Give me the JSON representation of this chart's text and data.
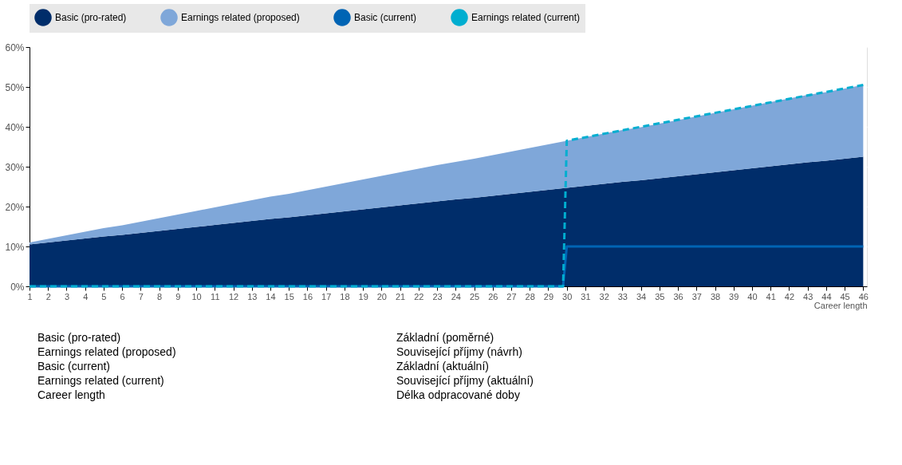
{
  "chart_data": {
    "type": "area",
    "stacked": true,
    "xlabel": "Career length",
    "x": [
      1,
      2,
      3,
      4,
      5,
      6,
      7,
      8,
      9,
      10,
      11,
      12,
      13,
      14,
      15,
      16,
      17,
      18,
      19,
      20,
      21,
      22,
      23,
      24,
      25,
      26,
      27,
      28,
      29,
      30,
      31,
      32,
      33,
      34,
      35,
      36,
      37,
      38,
      39,
      40,
      41,
      42,
      43,
      44,
      45,
      46
    ],
    "series": [
      {
        "name": "Basic (pro-rated)",
        "color": "#002d6a",
        "values": [
          10.5,
          11.0,
          11.5,
          12.0,
          12.5,
          12.9,
          13.4,
          13.9,
          14.4,
          14.9,
          15.4,
          15.9,
          16.4,
          16.9,
          17.3,
          17.8,
          18.3,
          18.8,
          19.3,
          19.8,
          20.3,
          20.8,
          21.3,
          21.8,
          22.2,
          22.7,
          23.2,
          23.7,
          24.2,
          24.7,
          25.2,
          25.7,
          26.2,
          26.6,
          27.1,
          27.6,
          28.1,
          28.6,
          29.1,
          29.6,
          30.1,
          30.6,
          31.1,
          31.5,
          32.0,
          32.5
        ]
      },
      {
        "name": "Earnings related (proposed)",
        "color": "#7fa7d9",
        "values": [
          0.5,
          0.9,
          1.3,
          1.7,
          2.1,
          2.4,
          2.8,
          3.2,
          3.6,
          4.0,
          4.4,
          4.8,
          5.2,
          5.6,
          5.9,
          6.3,
          6.7,
          7.1,
          7.5,
          7.9,
          8.3,
          8.7,
          9.1,
          9.4,
          9.8,
          10.2,
          10.6,
          11.0,
          11.4,
          11.8,
          12.2,
          12.6,
          13.0,
          13.3,
          13.7,
          14.1,
          14.5,
          14.9,
          15.3,
          15.7,
          16.1,
          16.5,
          16.9,
          17.2,
          17.6,
          18.0
        ]
      },
      {
        "name": "Basic (current)",
        "type": "line",
        "line_style": "solid",
        "color": "#0064b4",
        "x": [
          1,
          29.8,
          30,
          46
        ],
        "values": [
          0,
          0,
          10,
          10
        ]
      },
      {
        "name": "Earnings related (current)",
        "type": "line",
        "line_style": "dashed",
        "color": "#00aed0",
        "x": [
          1,
          29.8,
          30,
          46
        ],
        "values": [
          0,
          0,
          36.5,
          50.5
        ]
      }
    ],
    "xlim": [
      1,
      46.2
    ],
    "xticks": [
      1,
      2,
      3,
      4,
      5,
      6,
      7,
      8,
      9,
      10,
      11,
      12,
      13,
      14,
      15,
      16,
      17,
      18,
      19,
      20,
      21,
      22,
      23,
      24,
      25,
      26,
      27,
      28,
      29,
      30,
      31,
      32,
      33,
      34,
      35,
      36,
      37,
      38,
      39,
      40,
      41,
      42,
      43,
      44,
      45,
      46
    ],
    "ylim": [
      0,
      60
    ],
    "yticks": [
      {
        "value": 0,
        "label": "0%"
      },
      {
        "value": 10,
        "label": "10%"
      },
      {
        "value": 20,
        "label": "20%"
      },
      {
        "value": 30,
        "label": "30%"
      },
      {
        "value": 40,
        "label": "40%"
      },
      {
        "value": 50,
        "label": "50%"
      },
      {
        "value": 60,
        "label": "60%"
      }
    ],
    "grid": true,
    "legend": "top",
    "annotations": [
      "Basic (pro-rated)",
      "Základní (poměrné)",
      "Earnings related (proposed)",
      "Související příjmy (návrh)",
      "Basic (current)",
      "Základní (aktuální)",
      "Earnings related (current)",
      "Související příjmy (aktuální)",
      "Career length",
      "Délka odpracované doby"
    ]
  }
}
